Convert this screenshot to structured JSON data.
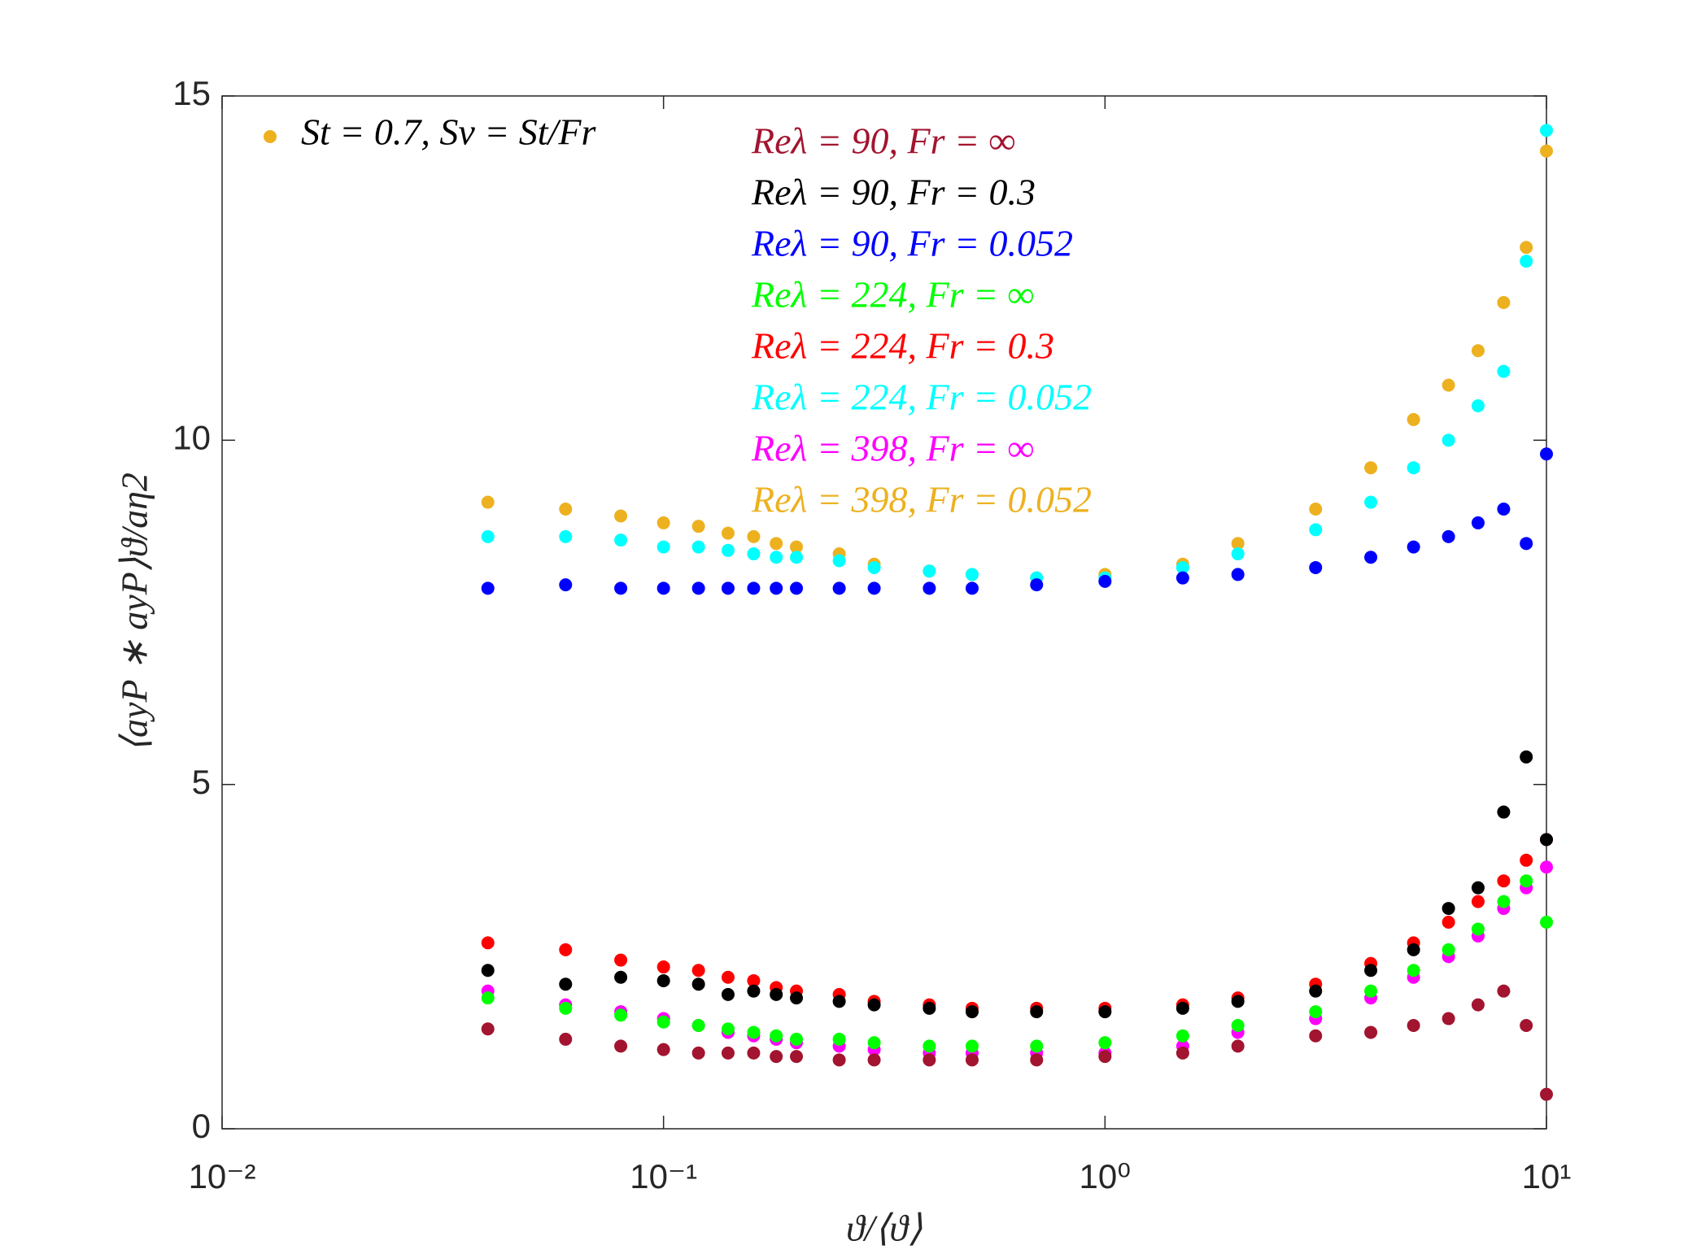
{
  "chart_data": {
    "type": "scatter",
    "annotation": "St = 0.7, Sv = St/Fr",
    "annotation_color": "#EDB120",
    "xlabel": "ϑ/⟨ϑ⟩",
    "ylabel": "⟨ayP ∗ ayP⟩ϑ/aη2",
    "x_scale": "log",
    "xlim": [
      0.01,
      10
    ],
    "xticks": [
      {
        "value": 0.01,
        "label": "10⁻²"
      },
      {
        "value": 0.1,
        "label": "10⁻¹"
      },
      {
        "value": 1,
        "label": "10⁰"
      },
      {
        "value": 10,
        "label": "10¹"
      }
    ],
    "ylim": [
      0,
      15
    ],
    "yticks": [
      0,
      5,
      10,
      15
    ],
    "x": [
      0.04,
      0.06,
      0.08,
      0.1,
      0.12,
      0.14,
      0.16,
      0.18,
      0.2,
      0.25,
      0.3,
      0.4,
      0.5,
      0.7,
      1,
      1.5,
      2,
      3,
      4,
      5,
      6,
      7,
      8,
      9,
      10
    ],
    "series": [
      {
        "name": "Reλ = 90, Fr = ∞",
        "color": "#A2142F",
        "values": [
          1.45,
          1.3,
          1.2,
          1.15,
          1.1,
          1.1,
          1.1,
          1.05,
          1.05,
          1.0,
          1.0,
          1.0,
          1.0,
          1.0,
          1.05,
          1.1,
          1.2,
          1.35,
          1.4,
          1.5,
          1.6,
          1.8,
          2.0,
          1.5,
          0.5
        ]
      },
      {
        "name": "Reλ = 90, Fr = 0.3",
        "color": "#000000",
        "values": [
          2.3,
          2.1,
          2.2,
          2.15,
          2.1,
          1.95,
          2.0,
          1.95,
          1.9,
          1.85,
          1.8,
          1.75,
          1.7,
          1.7,
          1.7,
          1.75,
          1.85,
          2.0,
          2.3,
          2.6,
          3.2,
          3.5,
          4.6,
          5.4,
          4.2
        ]
      },
      {
        "name": "Reλ = 90, Fr = 0.052",
        "color": "#0000FF",
        "values": [
          7.85,
          7.9,
          7.85,
          7.85,
          7.85,
          7.85,
          7.85,
          7.85,
          7.85,
          7.85,
          7.85,
          7.85,
          7.85,
          7.9,
          7.95,
          8.0,
          8.05,
          8.15,
          8.3,
          8.45,
          8.6,
          8.8,
          9.0,
          8.5,
          9.8
        ]
      },
      {
        "name": "Reλ = 224, Fr = ∞",
        "color": "#00FF00",
        "values": [
          1.9,
          1.75,
          1.65,
          1.55,
          1.5,
          1.45,
          1.4,
          1.35,
          1.3,
          1.3,
          1.25,
          1.2,
          1.2,
          1.2,
          1.25,
          1.35,
          1.5,
          1.7,
          2.0,
          2.3,
          2.6,
          2.9,
          3.3,
          3.6,
          3.0
        ]
      },
      {
        "name": "Reλ = 224, Fr = 0.3",
        "color": "#FF0000",
        "values": [
          2.7,
          2.6,
          2.45,
          2.35,
          2.3,
          2.2,
          2.15,
          2.05,
          2.0,
          1.95,
          1.85,
          1.8,
          1.75,
          1.75,
          1.75,
          1.8,
          1.9,
          2.1,
          2.4,
          2.7,
          3.0,
          3.3,
          3.6,
          3.9,
          4.2
        ]
      },
      {
        "name": "Reλ = 224, Fr = 0.052",
        "color": "#00FFFF",
        "values": [
          8.6,
          8.6,
          8.55,
          8.45,
          8.45,
          8.4,
          8.35,
          8.3,
          8.3,
          8.25,
          8.15,
          8.1,
          8.05,
          8.0,
          8.0,
          8.15,
          8.35,
          8.7,
          9.1,
          9.6,
          10.0,
          10.5,
          11.0,
          12.6,
          14.5
        ]
      },
      {
        "name": "Reλ = 398, Fr = ∞",
        "color": "#FF00FF",
        "values": [
          2.0,
          1.8,
          1.7,
          1.6,
          1.5,
          1.4,
          1.35,
          1.3,
          1.25,
          1.2,
          1.15,
          1.1,
          1.1,
          1.1,
          1.1,
          1.2,
          1.4,
          1.6,
          1.9,
          2.2,
          2.5,
          2.8,
          3.2,
          3.5,
          3.8
        ]
      },
      {
        "name": "Reλ = 398, Fr = 0.052",
        "color": "#EDB120",
        "values": [
          9.1,
          9.0,
          8.9,
          8.8,
          8.75,
          8.65,
          8.6,
          8.5,
          8.45,
          8.35,
          8.2,
          8.1,
          8.05,
          8.0,
          8.05,
          8.2,
          8.5,
          9.0,
          9.6,
          10.3,
          10.8,
          11.3,
          12.0,
          12.8,
          14.2
        ]
      }
    ]
  }
}
